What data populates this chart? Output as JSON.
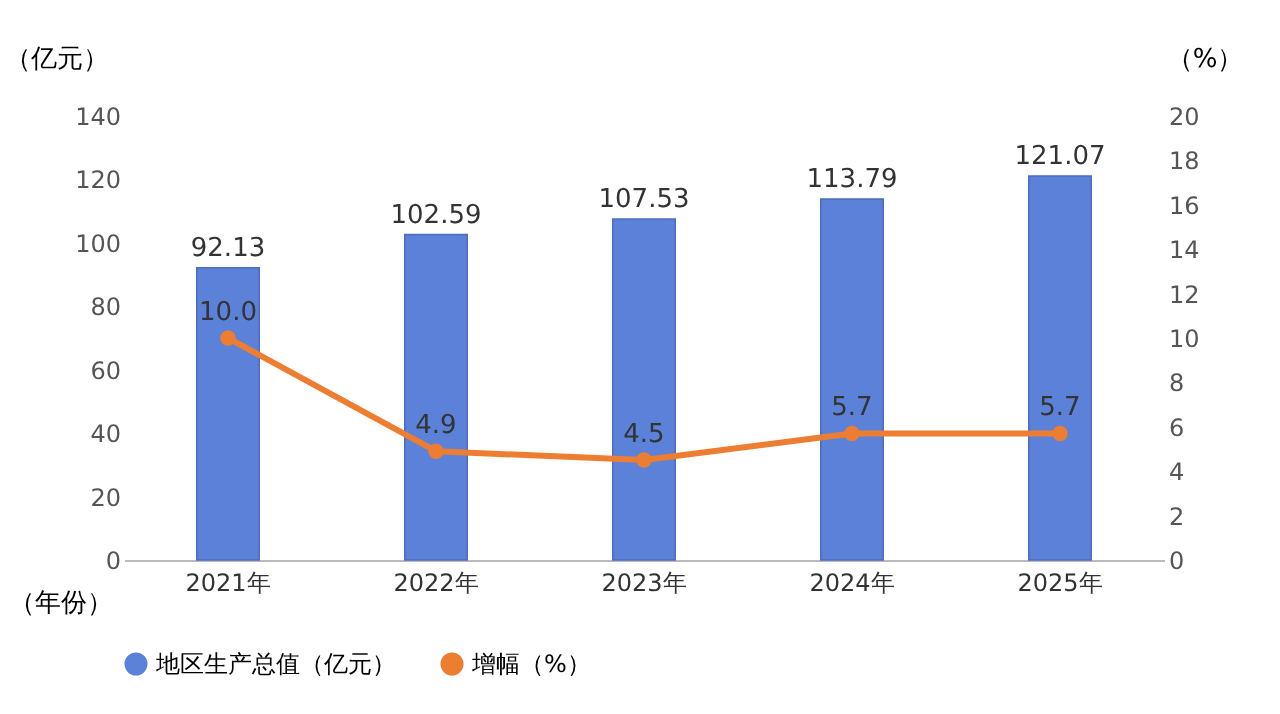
{
  "chart_data": {
    "type": "bar",
    "categories": [
      "2021年",
      "2022年",
      "2023年",
      "2024年",
      "2025年"
    ],
    "xlabel": "（年份）",
    "ylabel": "（亿元）",
    "y2label": "（%）",
    "ylim": [
      0,
      140
    ],
    "yticks": [
      0,
      20,
      40,
      60,
      80,
      100,
      120,
      140
    ],
    "y2lim": [
      0,
      20
    ],
    "y2ticks": [
      0,
      2,
      4,
      6,
      8,
      10,
      12,
      14,
      16,
      18,
      20
    ],
    "legend": "bottom",
    "marker": "circle",
    "line_style": "solid",
    "series": [
      {
        "name": "地区生产总值（亿元）",
        "color": "#5b82d8",
        "values": [
          92.13,
          102.59,
          107.53,
          113.79,
          121.07
        ],
        "value_labels": [
          "92.13",
          "102.59",
          "107.53",
          "113.79",
          "121.07"
        ]
      },
      {
        "name": "增幅（%）",
        "type": "line",
        "axis": "y2",
        "color": "#ed7d31",
        "values": [
          10.0,
          4.9,
          4.5,
          5.7,
          5.7
        ],
        "value_labels": [
          "10.0",
          "4.9",
          "4.5",
          "5.7",
          "5.7"
        ]
      }
    ]
  }
}
